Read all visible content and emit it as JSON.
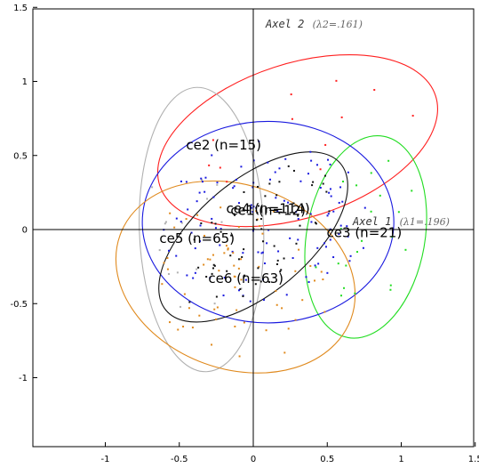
{
  "chart_data": {
    "type": "scatter",
    "title": "",
    "axes": {
      "x": {
        "label": "Axel 1",
        "eigen": "λ1=.196",
        "ticks": [
          -1,
          -0.5,
          0,
          0.5,
          1,
          1.5
        ],
        "tick_labels": [
          "-1",
          "-0.5",
          "0",
          "0.5",
          "1",
          "1.5"
        ],
        "range": [
          -1.5,
          1.5
        ]
      },
      "y": {
        "label": "Axel 2",
        "eigen": "λ2=.161",
        "ticks": [
          -1,
          -0.5,
          0,
          0.5,
          1,
          1.5
        ],
        "tick_labels": [
          "-1",
          "-0.5",
          "0",
          "0.5",
          "1",
          "1.5"
        ],
        "range": [
          -1.5,
          1.5
        ]
      }
    },
    "grid": false,
    "clusters": [
      {
        "name": "ce1",
        "label": "ce1 (n=12)",
        "color": "#ff2020",
        "center": [
          0.1,
          0.13
        ],
        "ellipse": {
          "cx": 0.3,
          "cy": 0.6,
          "rx": 0.98,
          "ry": 0.52,
          "angle_deg": 18
        }
      },
      {
        "name": "ce2",
        "label": "ce2 (n=15)",
        "color": "#b0b0b0",
        "center": [
          -0.2,
          0.57
        ],
        "ellipse": {
          "cx": -0.35,
          "cy": 0.0,
          "rx": 0.96,
          "ry": 0.42,
          "angle_deg": 92
        }
      },
      {
        "name": "ce3",
        "label": "ce3 (n=21)",
        "color": "#22dd22",
        "center": [
          0.75,
          -0.02
        ],
        "ellipse": {
          "cx": 0.76,
          "cy": -0.05,
          "rx": 0.69,
          "ry": 0.4,
          "angle_deg": 80
        }
      },
      {
        "name": "ce4",
        "label": "ce4 (n=114)",
        "color": "#1a1adf",
        "center": [
          0.1,
          0.14
        ],
        "ellipse": {
          "cx": 0.1,
          "cy": 0.05,
          "rx": 0.85,
          "ry": 0.68,
          "angle_deg": 0
        }
      },
      {
        "name": "ce5",
        "label": "ce5 (n=65)",
        "color": "#e08a1e",
        "center": [
          -0.38,
          -0.06
        ],
        "ellipse": {
          "cx": -0.12,
          "cy": -0.32,
          "rx": 0.83,
          "ry": 0.62,
          "angle_deg": -20
        }
      },
      {
        "name": "ce6",
        "label": "ce6 (n=63)",
        "color": "#111111",
        "center": [
          -0.05,
          -0.33
        ],
        "ellipse": {
          "cx": 0.0,
          "cy": -0.05,
          "rx": 0.77,
          "ry": 0.38,
          "angle_deg": 40
        }
      }
    ]
  }
}
